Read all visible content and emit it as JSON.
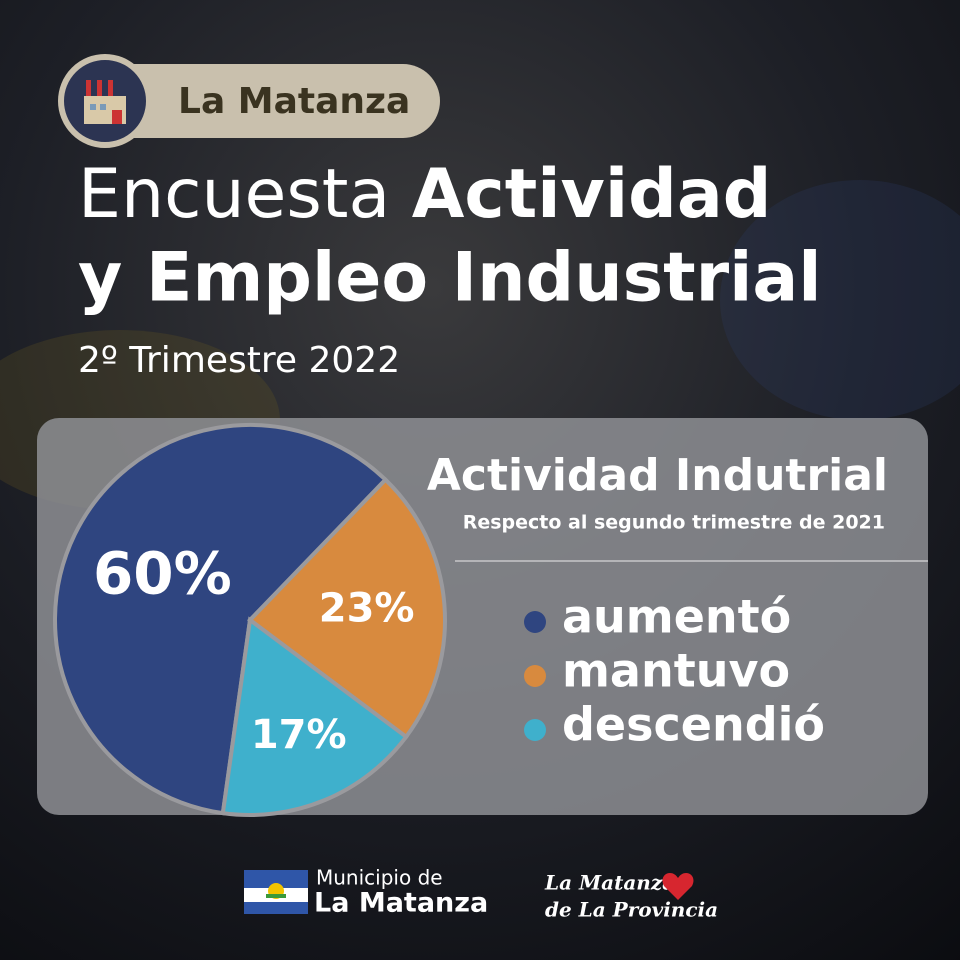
{
  "header": {
    "badge": "La Matanza",
    "title_light": "Encuesta",
    "title_bold_1": "Actividad",
    "title_bold_2": "y Empleo Industrial",
    "period": "2º Trimestre 2022"
  },
  "chart_data": {
    "type": "pie",
    "title": "Actividad Indutrial",
    "subtitle": "Respecto al segundo trimestre de 2021",
    "categories": [
      "aumentó",
      "mantuvo",
      "descendió"
    ],
    "values": [
      60,
      23,
      17
    ],
    "value_labels": [
      "60%",
      "23%",
      "17%"
    ],
    "colors": [
      "#2f4580",
      "#d88a3e",
      "#3fb0cc"
    ]
  },
  "footer": {
    "municipio_line1": "Municipio de",
    "municipio_line2": "La Matanza",
    "slogan_line1": "La Matanza,",
    "slogan_line2": "de La Provincia"
  }
}
